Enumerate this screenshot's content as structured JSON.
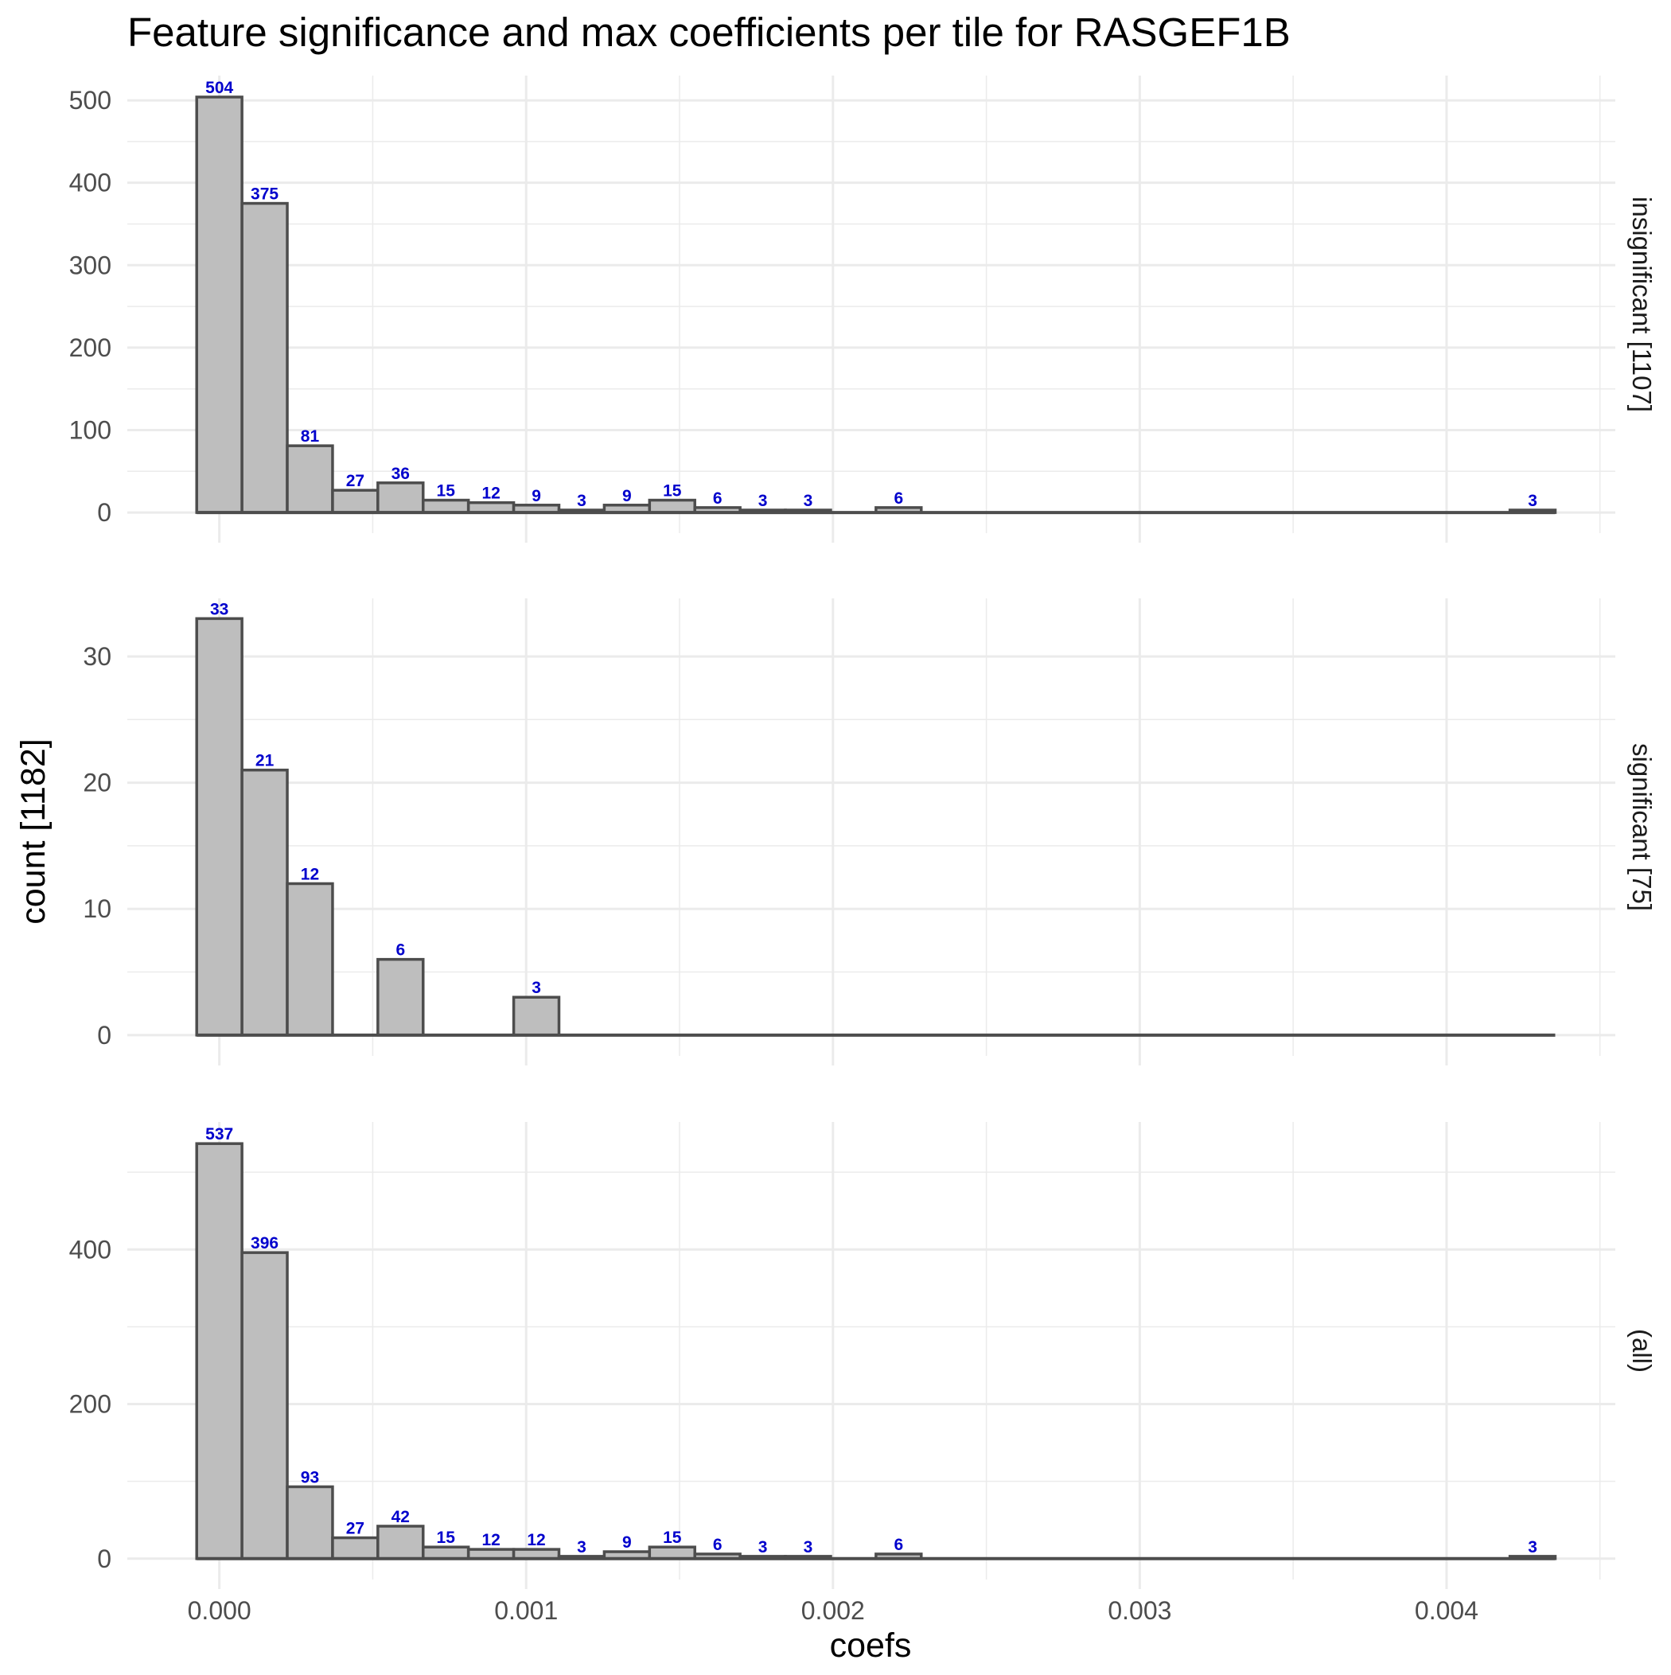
{
  "chart_data": {
    "type": "bar",
    "title": "Feature significance and max coefficients per tile for RASGEF1B",
    "xlabel": "coefs",
    "ylabel": "count [1182]",
    "bin_width": 0.0001476,
    "x_ticks": [
      "0.000",
      "0.001",
      "0.002",
      "0.003",
      "0.004"
    ],
    "x_tick_values": [
      0,
      0.001,
      0.002,
      0.003,
      0.004
    ],
    "xlim": [
      -0.0003,
      0.00455
    ],
    "bar_color": "#bebebe",
    "bar_outline_color": "#4d4d4d",
    "label_color": "#0000cc",
    "grid": true,
    "panels": [
      {
        "strip_label": "insignificant [1107]",
        "ylim": [
          -25,
          530
        ],
        "y_ticks": [
          0,
          100,
          200,
          300,
          400,
          500
        ],
        "y_tick_labels": [
          "0",
          "100",
          "200",
          "300",
          "400",
          "500"
        ],
        "bin_centers": [
          0.0,
          0.0001476,
          0.0002952,
          0.0004428,
          0.0005904,
          0.000738,
          0.0008856,
          0.0010332,
          0.0011808,
          0.0013284,
          0.001476,
          0.0016236,
          0.0017712,
          0.0019188,
          0.002214,
          0.0042804
        ],
        "values": [
          504,
          375,
          81,
          27,
          36,
          15,
          12,
          9,
          3,
          9,
          15,
          6,
          3,
          3,
          6,
          3
        ],
        "labels": [
          "504",
          "375",
          "81",
          "27",
          "36",
          "15",
          "12",
          "9",
          "3",
          "9",
          "15",
          "6",
          "3",
          "3",
          "6",
          "3"
        ]
      },
      {
        "strip_label": "significant [75]",
        "ylim": [
          -1.65,
          34.6
        ],
        "y_ticks": [
          0,
          10,
          20,
          30
        ],
        "y_tick_labels": [
          "0",
          "10",
          "20",
          "30"
        ],
        "bin_centers": [
          0.0,
          0.0001476,
          0.0002952,
          0.0005904,
          0.0010332
        ],
        "values": [
          33,
          21,
          12,
          6,
          3
        ],
        "labels": [
          "33",
          "21",
          "12",
          "6",
          "3"
        ]
      },
      {
        "strip_label": "(all)",
        "ylim": [
          -27,
          565
        ],
        "y_ticks": [
          0,
          200,
          400
        ],
        "y_tick_labels": [
          "0",
          "200",
          "400"
        ],
        "bin_centers": [
          0.0,
          0.0001476,
          0.0002952,
          0.0004428,
          0.0005904,
          0.000738,
          0.0008856,
          0.0010332,
          0.0011808,
          0.0013284,
          0.001476,
          0.0016236,
          0.0017712,
          0.0019188,
          0.002214,
          0.0042804
        ],
        "values": [
          537,
          396,
          93,
          27,
          42,
          15,
          12,
          12,
          3,
          9,
          15,
          6,
          3,
          3,
          6,
          3
        ],
        "labels": [
          "537",
          "396",
          "93",
          "27",
          "42",
          "15",
          "12",
          "12",
          "3",
          "9",
          "15",
          "6",
          "3",
          "3",
          "6",
          "3"
        ]
      }
    ]
  }
}
